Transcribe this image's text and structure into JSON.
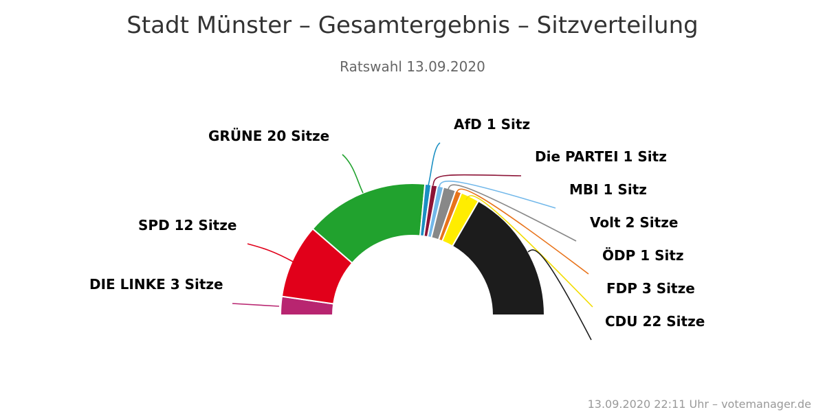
{
  "chart_data": {
    "type": "pie",
    "variant": "semicircle-parliament",
    "title": "Stadt Münster – Gesamtergebnis – Sitzverteilung",
    "subtitle": "Ratswahl 13.09.2020",
    "credit": "13.09.2020 22:11 Uhr – votemanager.de",
    "series": [
      {
        "name": "DIE LINKE",
        "seats": 3,
        "label": "DIE LINKE 3 Sitze",
        "color": "#b82570"
      },
      {
        "name": "SPD",
        "seats": 12,
        "label": "SPD 12 Sitze",
        "color": "#e1001a"
      },
      {
        "name": "GRÜNE",
        "seats": 20,
        "label": "GRÜNE 20 Sitze",
        "color": "#21a22e"
      },
      {
        "name": "AfD",
        "seats": 1,
        "label": "AfD 1 Sitz",
        "color": "#1a8fc2"
      },
      {
        "name": "Die PARTEI",
        "seats": 1,
        "label": "Die PARTEI 1 Sitz",
        "color": "#8c1336"
      },
      {
        "name": "MBI",
        "seats": 1,
        "label": "MBI 1 Sitz",
        "color": "#72b8ea"
      },
      {
        "name": "Volt",
        "seats": 2,
        "label": "Volt 2 Sitze",
        "color": "#888888"
      },
      {
        "name": "ÖDP",
        "seats": 1,
        "label": "ÖDP 1 Sitz",
        "color": "#e8731a"
      },
      {
        "name": "FDP",
        "seats": 3,
        "label": "FDP 3 Sitze",
        "color": "#ffed00"
      },
      {
        "name": "CDU",
        "seats": 22,
        "label": "CDU 22 Sitze",
        "color": "#1c1c1c"
      }
    ]
  }
}
